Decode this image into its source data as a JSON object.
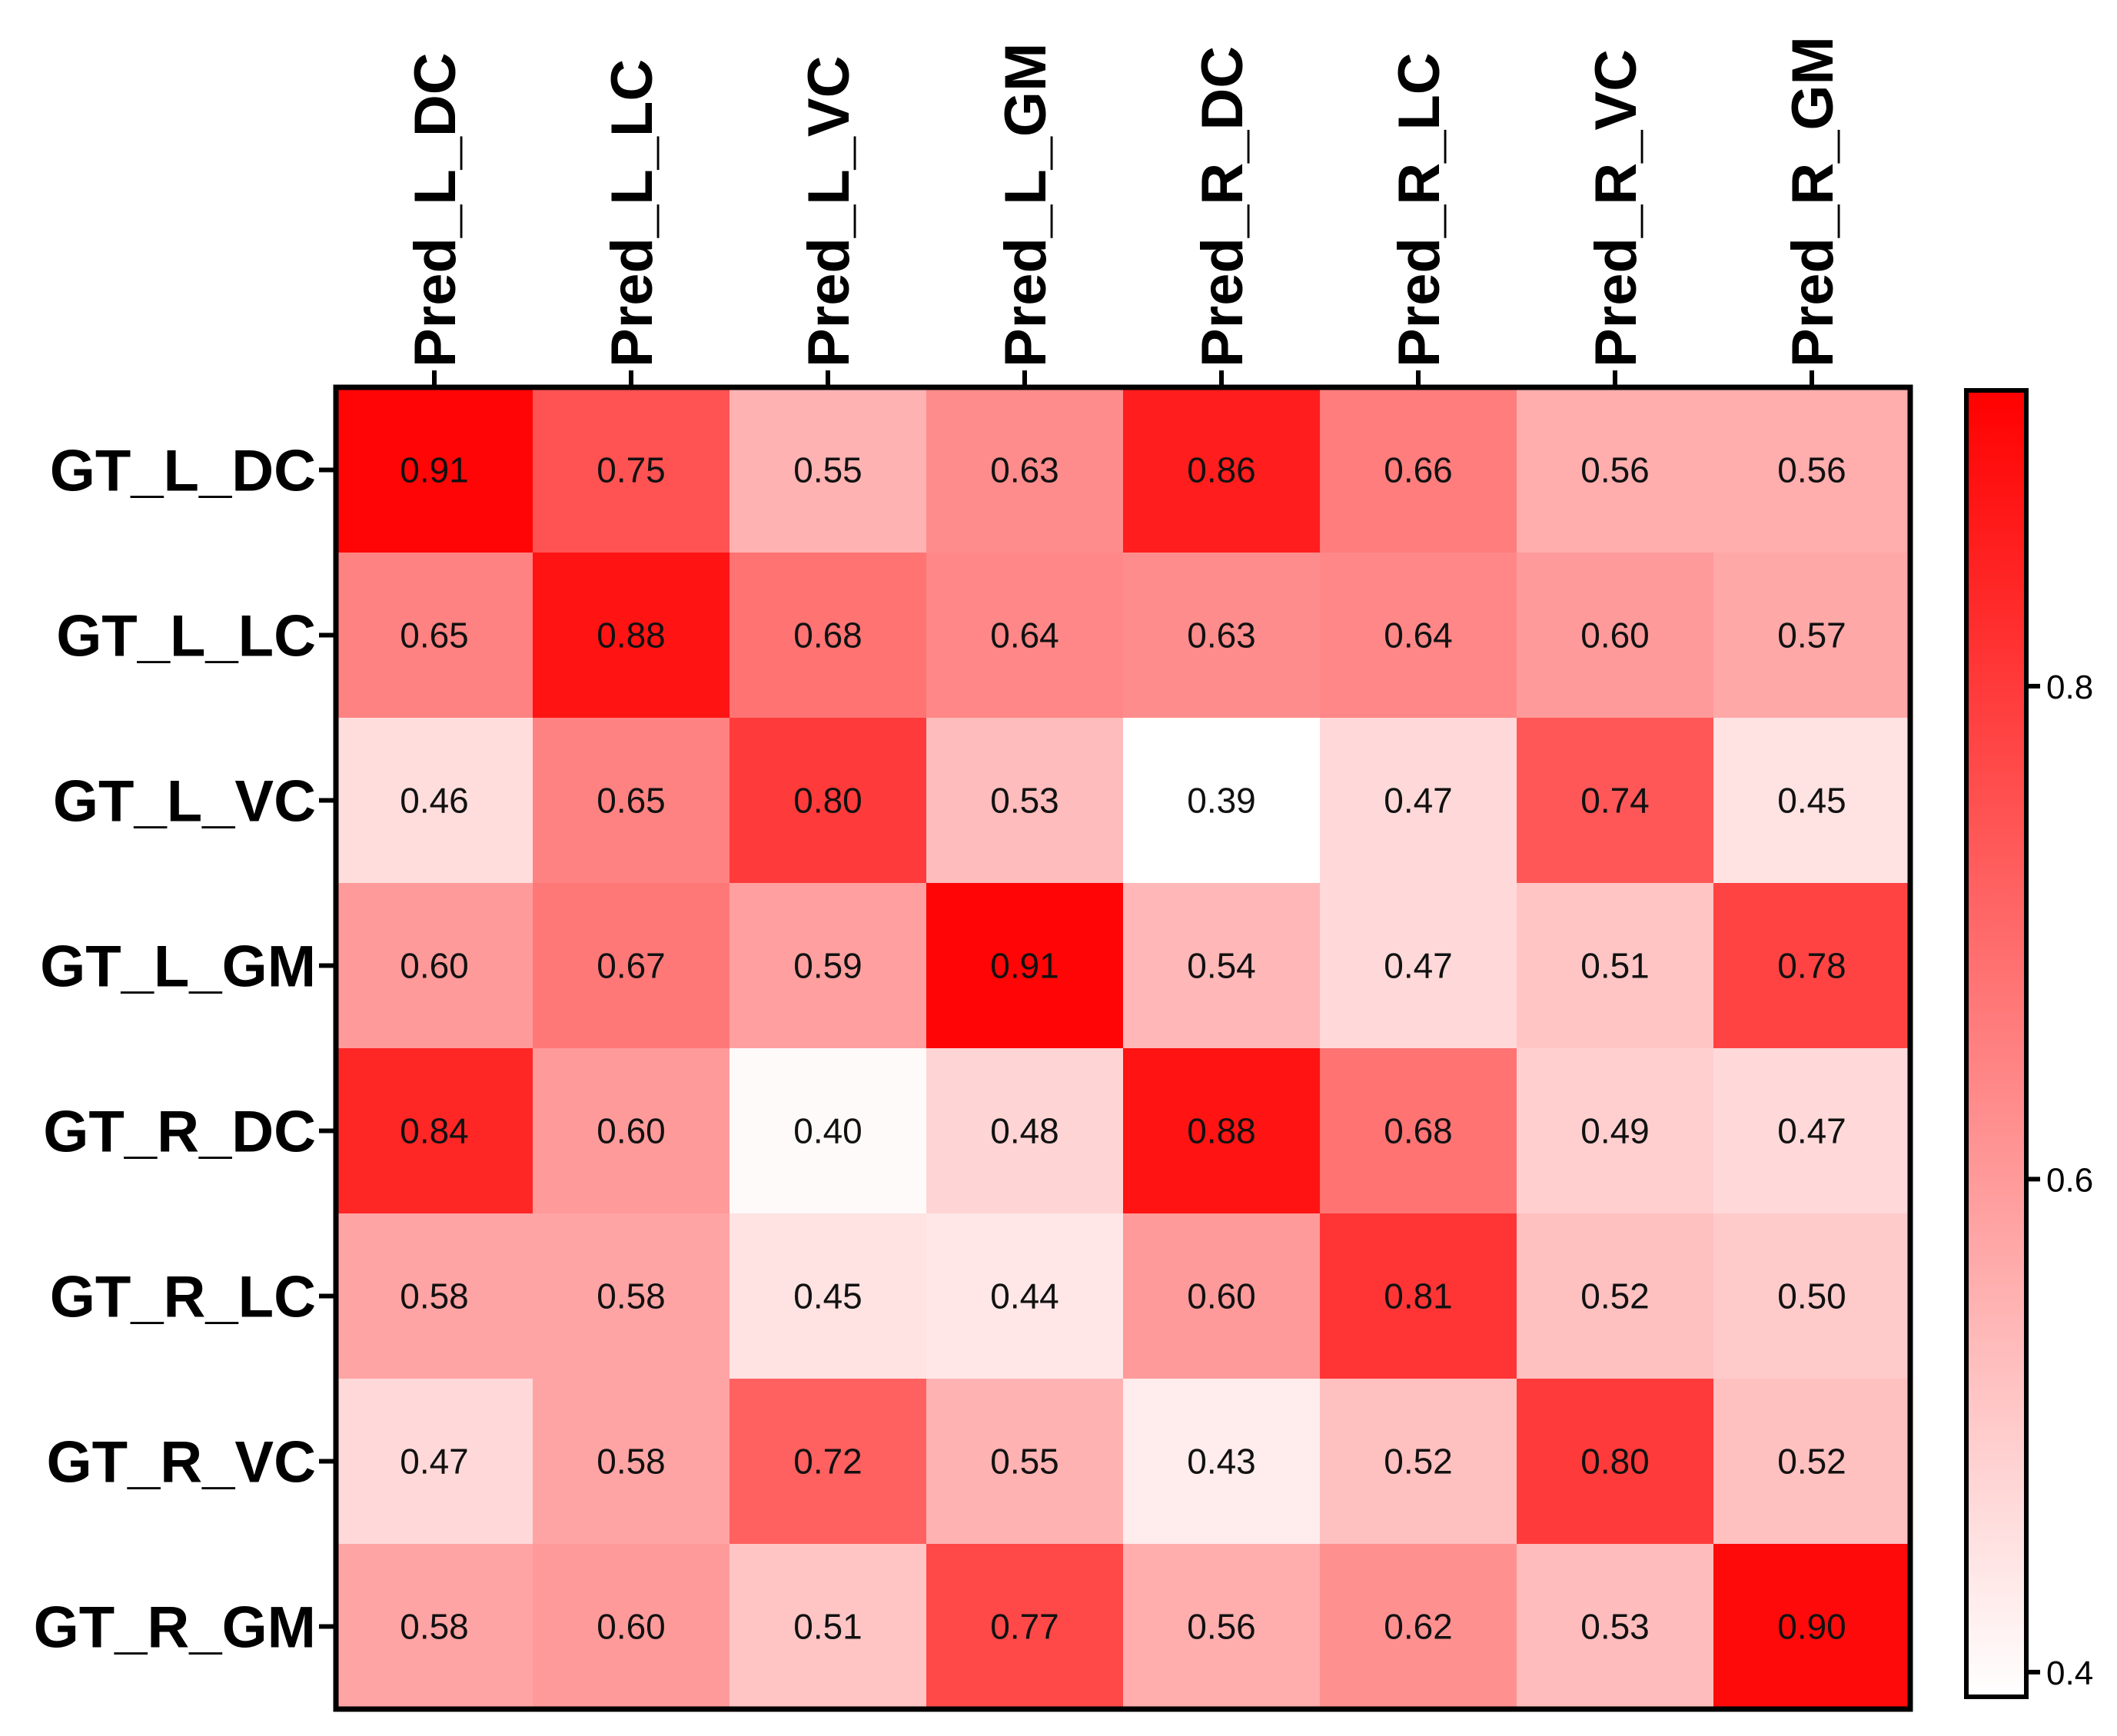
{
  "chart_data": {
    "type": "heatmap",
    "title": "",
    "row_labels": [
      "GT_L_DC",
      "GT_L_LC",
      "GT_L_VC",
      "GT_L_GM",
      "GT_R_DC",
      "GT_R_LC",
      "GT_R_VC",
      "GT_R_GM"
    ],
    "col_labels": [
      "Pred_L_DC",
      "Pred_L_LC",
      "Pred_L_VC",
      "Pred_L_GM",
      "Pred_R_DC",
      "Pred_R_LC",
      "Pred_R_VC",
      "Pred_R_GM"
    ],
    "values": [
      [
        0.91,
        0.75,
        0.55,
        0.63,
        0.86,
        0.66,
        0.56,
        0.56
      ],
      [
        0.65,
        0.88,
        0.68,
        0.64,
        0.63,
        0.64,
        0.6,
        0.57
      ],
      [
        0.46,
        0.65,
        0.8,
        0.53,
        0.39,
        0.47,
        0.74,
        0.45
      ],
      [
        0.6,
        0.67,
        0.59,
        0.91,
        0.54,
        0.47,
        0.51,
        0.78
      ],
      [
        0.84,
        0.6,
        0.4,
        0.48,
        0.88,
        0.68,
        0.49,
        0.47
      ],
      [
        0.58,
        0.58,
        0.45,
        0.44,
        0.6,
        0.81,
        0.52,
        0.5
      ],
      [
        0.47,
        0.58,
        0.72,
        0.55,
        0.43,
        0.52,
        0.8,
        0.52
      ],
      [
        0.58,
        0.6,
        0.51,
        0.77,
        0.56,
        0.62,
        0.53,
        0.9
      ]
    ],
    "colorbar": {
      "min": 0.39,
      "max": 0.92,
      "ticks": [
        0.4,
        0.6,
        0.8
      ],
      "tick_labels": [
        "0.4",
        "0.6",
        "0.8"
      ],
      "low_color": "#ffffff",
      "high_color": "#ff0000"
    }
  }
}
